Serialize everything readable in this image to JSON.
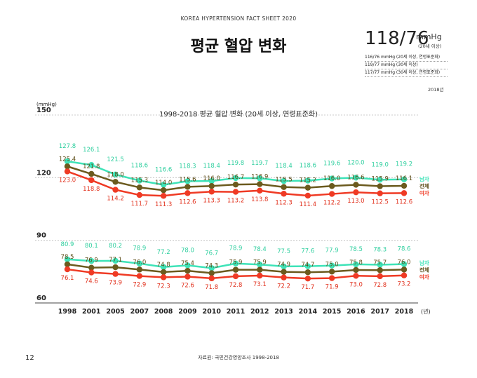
{
  "header": "KOREA HYPERTENSION FACT SHEET 2020",
  "title": "평균 혈압 변화",
  "summary": {
    "value": "118/76",
    "unit": "mmHg",
    "unit_sub": "(20세 이상)",
    "lines": [
      "116/76 mmHg (20세 이상, 연령표준화)",
      "119/77 mmHg (30세 이상)",
      "117/77 mmHg (30세 이상, 연령표준화)"
    ],
    "year_note": "2018년"
  },
  "page_number": "12",
  "source": "자료원: 국민건강영양조사 1998-2018",
  "colors": {
    "male": "#3ee3b8",
    "total": "#6b5a1e",
    "female": "#ef3a24",
    "grid": "#bbbbbb"
  },
  "chart_data": {
    "type": "line",
    "title": "1998-2018 평균 혈압 변화 (20세 이상, 연령표준화)",
    "ylabel": "(mmHg)",
    "xlabel_unit": "(년)",
    "ylim": [
      60,
      150
    ],
    "yticks": [
      60,
      90,
      120,
      150
    ],
    "categories": [
      "1998",
      "2001",
      "2005",
      "2007",
      "2008",
      "2009",
      "2010",
      "2011",
      "2012",
      "2013",
      "2014",
      "2015",
      "2016",
      "2017",
      "2018"
    ],
    "series": [
      {
        "name": "남자",
        "group": "systolic",
        "color": "#3ee3b8",
        "values": [
          127.8,
          126.1,
          121.5,
          118.6,
          116.6,
          118.3,
          118.4,
          119.8,
          119.7,
          118.4,
          118.6,
          119.6,
          120.0,
          119.0,
          119.2
        ]
      },
      {
        "name": "전체",
        "group": "systolic",
        "color": "#6b5a1e",
        "values": [
          125.4,
          121.8,
          118.0,
          115.3,
          114.0,
          115.6,
          116.0,
          116.7,
          116.9,
          115.5,
          115.2,
          116.0,
          116.6,
          115.9,
          116.1
        ]
      },
      {
        "name": "여자",
        "group": "systolic",
        "color": "#ef3a24",
        "values": [
          123.0,
          118.8,
          114.2,
          111.7,
          111.3,
          112.6,
          113.3,
          113.2,
          113.8,
          112.3,
          111.4,
          112.2,
          113.0,
          112.5,
          112.6
        ]
      },
      {
        "name": "남자",
        "group": "diastolic",
        "color": "#3ee3b8",
        "values": [
          80.9,
          80.1,
          80.2,
          78.9,
          77.2,
          78.0,
          76.7,
          78.9,
          78.4,
          77.5,
          77.6,
          77.9,
          78.5,
          78.3,
          78.6
        ]
      },
      {
        "name": "전체",
        "group": "diastolic",
        "color": "#6b5a1e",
        "values": [
          78.5,
          76.9,
          77.1,
          76.0,
          74.8,
          75.4,
          74.3,
          75.9,
          75.9,
          74.9,
          74.7,
          75.0,
          75.8,
          75.7,
          76.0
        ]
      },
      {
        "name": "여자",
        "group": "diastolic",
        "color": "#ef3a24",
        "values": [
          76.1,
          74.6,
          73.9,
          72.9,
          72.3,
          72.6,
          71.8,
          72.8,
          73.1,
          72.2,
          71.7,
          71.9,
          73.0,
          72.8,
          73.2
        ]
      }
    ]
  }
}
